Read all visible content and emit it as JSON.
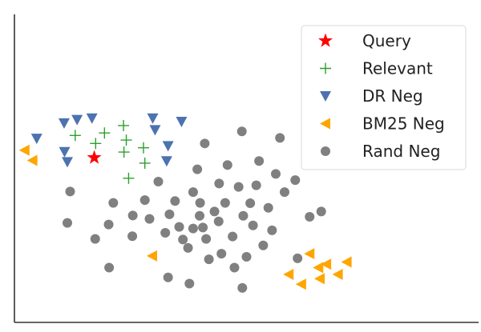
{
  "chart_data": {
    "type": "scatter",
    "title": "",
    "xlabel": "",
    "ylabel": "",
    "axes": {
      "ticks": false,
      "grid": false,
      "spines": [
        "left",
        "bottom"
      ]
    },
    "xlim": [
      0,
      100
    ],
    "ylim": [
      0,
      100
    ],
    "legend": {
      "position": "top-right",
      "framed": true
    },
    "series": [
      {
        "name": "Query",
        "marker": "star",
        "color": "#ff0000",
        "points": [
          [
            17.2,
            53.5
          ]
        ]
      },
      {
        "name": "Relevant",
        "marker": "plus",
        "color": "#2ca02c",
        "points": [
          [
            13.1,
            60.7
          ],
          [
            17.5,
            58.1
          ],
          [
            19.4,
            61.5
          ],
          [
            23.5,
            63.9
          ],
          [
            24.1,
            59.2
          ],
          [
            23.6,
            55.3
          ],
          [
            27.8,
            56.7
          ],
          [
            28.1,
            51.7
          ],
          [
            24.6,
            46.8
          ]
        ]
      },
      {
        "name": "DR Neg",
        "marker": "triangle-down",
        "color": "#4c72b0",
        "points": [
          [
            4.8,
            59.7
          ],
          [
            10.7,
            64.7
          ],
          [
            13.5,
            65.8
          ],
          [
            16.7,
            66.3
          ],
          [
            10.8,
            55.4
          ],
          [
            11.4,
            52.1
          ],
          [
            29.8,
            66.3
          ],
          [
            30.3,
            62.5
          ],
          [
            33.1,
            57.3
          ],
          [
            32.8,
            52.4
          ],
          [
            36.0,
            65.2
          ]
        ]
      },
      {
        "name": "BM25 Neg",
        "marker": "triangle-left",
        "color": "#ffa500",
        "points": [
          [
            2.2,
            55.9
          ],
          [
            3.9,
            52.6
          ],
          [
            29.7,
            21.6
          ],
          [
            63.6,
            22.3
          ],
          [
            65.5,
            17.8
          ],
          [
            67.2,
            18.9
          ],
          [
            65.8,
            14.2
          ],
          [
            69.7,
            15.6
          ],
          [
            71.6,
            19.6
          ],
          [
            59.1,
            15.6
          ],
          [
            61.8,
            12.4
          ]
        ]
      },
      {
        "name": "Rand Neg",
        "marker": "circle",
        "color": "#808080",
        "points": [
          [
            12.0,
            42.5
          ],
          [
            11.4,
            32.3
          ],
          [
            17.4,
            27.1
          ],
          [
            20.3,
            31.8
          ],
          [
            20.4,
            17.8
          ],
          [
            21.3,
            38.8
          ],
          [
            25.5,
            34.7
          ],
          [
            25.4,
            28.0
          ],
          [
            28.1,
            39.7
          ],
          [
            29.1,
            33.6
          ],
          [
            31.0,
            45.7
          ],
          [
            32.5,
            29.1
          ],
          [
            33.4,
            35.1
          ],
          [
            33.1,
            14.6
          ],
          [
            34.6,
            39.4
          ],
          [
            35.5,
            31.0
          ],
          [
            36.3,
            26.9
          ],
          [
            37.4,
            24.2
          ],
          [
            37.7,
            12.6
          ],
          [
            38.5,
            42.3
          ],
          [
            38.5,
            30.5
          ],
          [
            39.4,
            49.7
          ],
          [
            40.0,
            38.8
          ],
          [
            39.9,
            34.6
          ],
          [
            40.6,
            30.8
          ],
          [
            41.0,
            58.1
          ],
          [
            41.3,
            27.1
          ],
          [
            41.9,
            20.5
          ],
          [
            43.1,
            36.0
          ],
          [
            44.1,
            45.1
          ],
          [
            44.0,
            32.8
          ],
          [
            44.6,
            22.3
          ],
          [
            45.4,
            38.8
          ],
          [
            45.9,
            51.1
          ],
          [
            47.0,
            27.9
          ],
          [
            47.4,
            17.8
          ],
          [
            49.0,
            62.0
          ],
          [
            48.3,
            44.0
          ],
          [
            49.3,
            34.6
          ],
          [
            49.1,
            11.2
          ],
          [
            50.0,
            21.3
          ],
          [
            50.8,
            38.7
          ],
          [
            51.4,
            31.5
          ],
          [
            52.7,
            52.4
          ],
          [
            52.1,
            44.5
          ],
          [
            53.6,
            25.0
          ],
          [
            54.7,
            37.2
          ],
          [
            55.5,
            29.9
          ],
          [
            56.3,
            48.2
          ],
          [
            57.2,
            59.9
          ],
          [
            58.2,
            42.3
          ],
          [
            60.5,
            46.2
          ],
          [
            61.0,
            20.8
          ],
          [
            63.6,
            34.3
          ],
          [
            66.1,
            36.0
          ]
        ]
      }
    ]
  }
}
